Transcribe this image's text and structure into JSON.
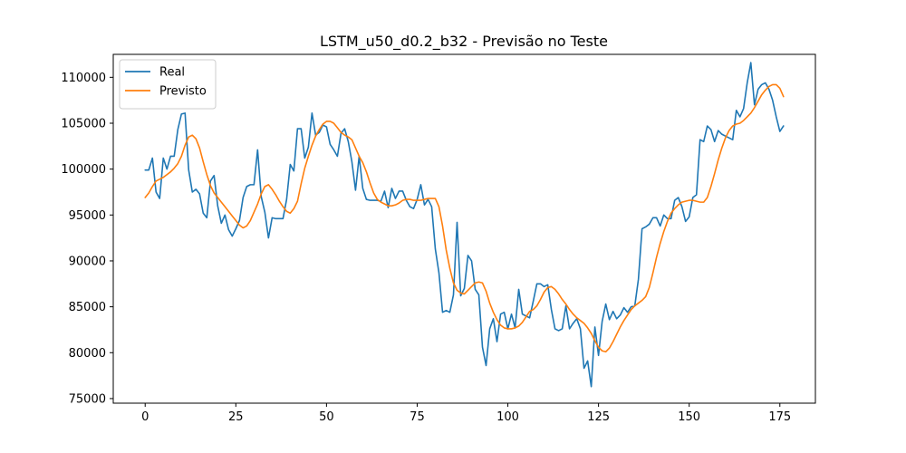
{
  "chart_data": {
    "type": "line",
    "title": "LSTM_u50_d0.2_b32 - Previsão no Teste",
    "xlabel": "",
    "ylabel": "",
    "xlim": [
      -8.8,
      184.8
    ],
    "ylim": [
      74500,
      112500
    ],
    "x_ticks": [
      0,
      25,
      50,
      75,
      100,
      125,
      150,
      175
    ],
    "x_tick_labels": [
      "0",
      "25",
      "50",
      "75",
      "100",
      "125",
      "150",
      "175"
    ],
    "y_ticks": [
      75000,
      80000,
      85000,
      90000,
      95000,
      100000,
      105000,
      110000
    ],
    "y_tick_labels": [
      "75000",
      "80000",
      "85000",
      "90000",
      "95000",
      "100000",
      "105000",
      "110000"
    ],
    "grid": false,
    "legend_position": "top-left",
    "series": [
      {
        "name": "Real",
        "color": "#1f77b4",
        "values": [
          99900,
          99900,
          101200,
          97500,
          96800,
          101200,
          100000,
          101400,
          101400,
          104300,
          106000,
          106100,
          99900,
          97500,
          97800,
          97300,
          95200,
          94700,
          98700,
          99300,
          96000,
          94100,
          95000,
          93400,
          92700,
          93500,
          94400,
          96900,
          98100,
          98300,
          98300,
          102100,
          97000,
          95300,
          92500,
          94700,
          94600,
          94600,
          94600,
          96700,
          100500,
          99800,
          104400,
          104400,
          101200,
          102400,
          106100,
          103700,
          104000,
          104800,
          104600,
          102700,
          102100,
          101400,
          103900,
          104400,
          103000,
          100800,
          97700,
          101400,
          97900,
          96700,
          96600,
          96600,
          96600,
          96500,
          97600,
          95800,
          97900,
          96800,
          97600,
          97600,
          96600,
          95900,
          95700,
          96700,
          98300,
          96100,
          96700,
          95900,
          91300,
          88700,
          84400,
          84600,
          84400,
          86300,
          94200,
          86200,
          87000,
          90600,
          90000,
          86900,
          86300,
          80600,
          78600,
          82600,
          83700,
          81200,
          84200,
          84400,
          82600,
          84200,
          82700,
          86900,
          84200,
          84000,
          83800,
          85600,
          87500,
          87500,
          87200,
          87400,
          84700,
          82600,
          82400,
          82600,
          85100,
          82600,
          83200,
          83700,
          82600,
          78300,
          79100,
          76300,
          82800,
          79700,
          83400,
          85300,
          83600,
          84500,
          83700,
          84100,
          84900,
          84400,
          85000,
          85100,
          88000,
          93500,
          93700,
          94000,
          94700,
          94700,
          93800,
          95000,
          94600,
          94600,
          96600,
          96900,
          95900,
          94300,
          94800,
          96900,
          97200,
          103200,
          103000,
          104700,
          104300,
          103000,
          104200,
          103800,
          103600,
          103400,
          103200,
          106400,
          105700,
          106600,
          109400,
          111600,
          107000,
          108700,
          109200,
          109400,
          108700,
          107500,
          105700,
          104100,
          104700
        ]
      },
      {
        "name": "Previsto",
        "color": "#ff7f0e",
        "values": [
          96900,
          97400,
          98100,
          98700,
          98900,
          99100,
          99400,
          99700,
          100100,
          100600,
          101400,
          102600,
          103500,
          103700,
          103300,
          102300,
          100800,
          99400,
          98200,
          97400,
          96900,
          96400,
          95900,
          95400,
          94900,
          94400,
          93900,
          93600,
          93800,
          94400,
          95300,
          96200,
          97300,
          98100,
          98300,
          97800,
          97200,
          96500,
          95900,
          95400,
          95200,
          95700,
          96500,
          98400,
          100100,
          101400,
          102600,
          103600,
          104300,
          104900,
          105200,
          105200,
          105000,
          104500,
          104000,
          103700,
          103500,
          103200,
          102300,
          101400,
          100700,
          99700,
          98500,
          97400,
          96700,
          96400,
          96200,
          96000,
          96000,
          96100,
          96300,
          96600,
          96700,
          96700,
          96600,
          96600,
          96600,
          96700,
          96800,
          96800,
          96800,
          95900,
          93800,
          91200,
          89200,
          87600,
          86800,
          86500,
          86400,
          86800,
          87200,
          87600,
          87700,
          87600,
          86700,
          85400,
          84400,
          83600,
          83000,
          82700,
          82600,
          82600,
          82700,
          82900,
          83300,
          83900,
          84500,
          84700,
          85100,
          85800,
          86600,
          87100,
          87200,
          86900,
          86400,
          85800,
          85300,
          84700,
          84200,
          83800,
          83500,
          83200,
          82700,
          82100,
          81300,
          80600,
          80200,
          80100,
          80500,
          81200,
          82000,
          82800,
          83500,
          84100,
          84700,
          85100,
          85400,
          85700,
          86100,
          87100,
          88700,
          90400,
          91900,
          93200,
          94300,
          95200,
          95700,
          96100,
          96400,
          96500,
          96600,
          96600,
          96500,
          96400,
          96400,
          96900,
          98100,
          99500,
          101000,
          102300,
          103400,
          104200,
          104700,
          104900,
          105000,
          105300,
          105700,
          106100,
          106700,
          107400,
          108100,
          108600,
          109000,
          109200,
          109200,
          108800,
          107900
        ]
      }
    ]
  }
}
